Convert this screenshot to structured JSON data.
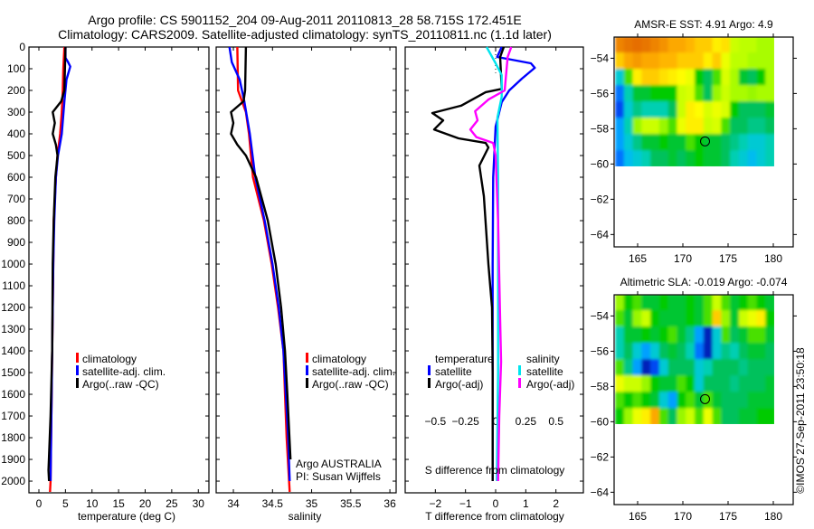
{
  "title": {
    "line1": "Argo profile: CS 5901152_204 09-Aug-2011 20110813_28 58.715S 172.451E",
    "line2": "Climatology: CARS2009. Satellite-adjusted climatology: synTS_20110811.nc (1.1d later)"
  },
  "credit": {
    "line1": "Argo AUSTRALIA",
    "line2": "PI: Susan Wijffels"
  },
  "copyright": "©IMOS 27-Sep-2011 23:50:18",
  "colors": {
    "climatology": "#ff0000",
    "satellite": "#0000ff",
    "argo": "#000000",
    "sal_satellite": "#00e5ee",
    "sal_argo": "#ff00ff"
  },
  "chart_data": [
    {
      "type": "line",
      "name": "temperature-profile",
      "xlabel": "temperature (deg C)",
      "ylabel": "",
      "xlim": [
        -1.87,
        32.0
      ],
      "ylim": [
        2054,
        0
      ],
      "xticks": [
        0,
        5,
        10,
        15,
        20,
        25,
        30
      ],
      "yticks": [
        0,
        100,
        200,
        300,
        400,
        500,
        600,
        700,
        800,
        900,
        1000,
        1100,
        1200,
        1300,
        1400,
        1500,
        1600,
        1700,
        1800,
        1900,
        2000
      ],
      "legend": [
        "climatology",
        "satellite-adj. clim.",
        "Argo(..raw -QC)"
      ],
      "series": [
        {
          "name": "climatology",
          "color": "#ff0000",
          "depth": [
            0,
            100,
            200,
            300,
            400,
            500,
            600,
            700,
            800,
            1000,
            1200,
            1400,
            1600,
            1800,
            2000,
            2050
          ],
          "values": [
            4.8,
            4.6,
            4.5,
            4.3,
            4.0,
            3.5,
            3.2,
            3.0,
            2.8,
            2.7,
            2.6,
            2.5,
            2.4,
            2.3,
            2.2,
            2.1
          ]
        },
        {
          "name": "satellite-adj. clim.",
          "color": "#0000ff",
          "depth": [
            0,
            50,
            70,
            90,
            150,
            250,
            400,
            500,
            600,
            800,
            1000,
            1400,
            2000
          ],
          "values": [
            5.0,
            5.0,
            5.5,
            5.9,
            5.2,
            4.8,
            4.3,
            3.6,
            3.2,
            2.9,
            2.7,
            2.5,
            2.2
          ]
        },
        {
          "name": "Argo(..raw -QC)",
          "color": "#000000",
          "depth": [
            0,
            200,
            250,
            300,
            350,
            400,
            450,
            500,
            600,
            800,
            1000,
            1400,
            1700,
            1950,
            2000
          ],
          "values": [
            5.0,
            4.8,
            4.2,
            2.6,
            3.0,
            2.6,
            3.2,
            3.5,
            3.1,
            2.8,
            2.6,
            2.5,
            2.2,
            1.8,
            1.9
          ]
        }
      ]
    },
    {
      "type": "line",
      "name": "salinity-profile",
      "xlabel": "salinity",
      "xlim": [
        33.78,
        36.08
      ],
      "ylim": [
        2054,
        0
      ],
      "xticks": [
        34,
        34.5,
        35,
        35.5,
        36
      ],
      "legend": [
        "climatology",
        "satellite-adj. clim.",
        "Argo(..raw -QC)"
      ],
      "series": [
        {
          "name": "climatology",
          "color": "#ff0000",
          "depth": [
            0,
            200,
            300,
            400,
            600,
            800,
            1000,
            1200,
            1400,
            1600,
            1800,
            2050
          ],
          "values": [
            34.05,
            34.06,
            34.16,
            34.2,
            34.25,
            34.39,
            34.49,
            34.57,
            34.64,
            34.66,
            34.68,
            34.72
          ]
        },
        {
          "name": "satellite-adj. clim.",
          "color": "#0000ff",
          "depth": [
            0,
            70,
            150,
            250,
            400,
            600,
            800,
            1000,
            1200,
            1400,
            1600,
            1800,
            2000
          ],
          "values": [
            33.95,
            33.98,
            34.08,
            34.14,
            34.21,
            34.28,
            34.4,
            34.5,
            34.58,
            34.64,
            34.67,
            34.7,
            34.72
          ]
        },
        {
          "name": "Argo(..raw -QC)",
          "color": "#000000",
          "depth": [
            0,
            200,
            250,
            300,
            350,
            400,
            450,
            500,
            600,
            800,
            1000,
            1200,
            1400,
            1600,
            1900
          ],
          "values": [
            34.16,
            34.15,
            34.13,
            33.97,
            34.0,
            33.97,
            34.05,
            34.16,
            34.29,
            34.44,
            34.54,
            34.61,
            34.66,
            34.69,
            34.73
          ]
        }
      ]
    },
    {
      "type": "line",
      "name": "difference-profile",
      "xlabel": "T difference from climatology",
      "xlabel2": "S difference from climatology",
      "xlim": [
        -3.0,
        2.91
      ],
      "x2_scale": 0.25,
      "ylim": [
        2054,
        0
      ],
      "xticks": [
        -2,
        -1,
        0,
        1,
        2
      ],
      "x2ticks": [
        -0.5,
        -0.25,
        0,
        0.25,
        0.5
      ],
      "legend": {
        "temperature": "temperature",
        "salinity": "salinity",
        "satellite": "satellite",
        "argo": "Argo(-adj)"
      },
      "series": [
        {
          "name": "T satellite",
          "axis": "T",
          "color": "#0000ff",
          "depth": [
            0,
            46,
            75,
            96,
            146,
            200,
            254,
            367,
            600,
            1000,
            2000
          ],
          "values": [
            0.2,
            0.05,
            1.17,
            1.3,
            0.87,
            0.45,
            0.2,
            0.0,
            -0.08,
            -0.1,
            -0.1
          ]
        },
        {
          "name": "T Argo(-adj)",
          "axis": "T",
          "color": "#000000",
          "depth": [
            0,
            46,
            193,
            208,
            270,
            304,
            338,
            380,
            421,
            442,
            463,
            546,
            688,
            1000,
            1200,
            1500,
            2000
          ],
          "values": [
            0.27,
            0.15,
            0.2,
            -0.33,
            -1.14,
            -2.1,
            -1.74,
            -2.04,
            -1.23,
            -0.33,
            -0.24,
            -0.54,
            -0.39,
            -0.24,
            -0.12,
            -0.1,
            -0.1
          ]
        },
        {
          "name": "S satellite",
          "axis": "S",
          "color": "#00e5ee",
          "depth": [
            0,
            75,
            129,
            229,
            325,
            600,
            1000,
            1500,
            2000
          ],
          "values": [
            -0.075,
            0.0,
            0.05,
            0.05,
            0.015,
            0.02,
            0.02,
            0.02,
            0.01
          ]
        },
        {
          "name": "S Argo(-adj)",
          "axis": "S",
          "color": "#ff00ff",
          "depth": [
            0,
            46,
            200,
            242,
            296,
            338,
            380,
            415,
            442,
            500,
            800,
            1200,
            1450,
            1700,
            2000
          ],
          "values": [
            0.13,
            0.1,
            0.075,
            -0.06,
            -0.17,
            -0.15,
            -0.21,
            -0.16,
            -0.02,
            0.0,
            0.02,
            0.035,
            0.045,
            0.03,
            0.02
          ]
        }
      ]
    },
    {
      "type": "heatmap",
      "name": "sst-map",
      "title": "AMSR-E SST: 4.91 Argo: 4.9",
      "xlim": [
        162.4,
        182.2
      ],
      "ylim": [
        -64.7,
        -52.8
      ],
      "xticks": [
        165,
        170,
        175,
        180
      ],
      "yticks": [
        -54,
        -56,
        -58,
        -60,
        -62,
        -64
      ],
      "extent": [
        162.6,
        180.2,
        -60.2,
        -52.8
      ],
      "float_position": {
        "lon": 172.451,
        "lat": -58.715
      },
      "grid_values": [
        [
          0.95,
          0.97,
          0.98,
          0.97,
          0.95,
          0.93,
          0.9,
          0.9,
          0.88,
          0.85,
          0.85,
          0.8,
          0.82,
          0.7,
          0.68,
          0.68,
          0.66,
          0.66
        ],
        [
          0.85,
          0.9,
          0.92,
          0.9,
          0.9,
          0.88,
          0.88,
          0.85,
          0.85,
          0.85,
          0.8,
          0.85,
          0.75,
          0.68,
          0.68,
          0.66,
          0.66,
          0.66
        ],
        [
          0.3,
          0.6,
          0.8,
          0.85,
          0.85,
          0.82,
          0.8,
          0.78,
          0.75,
          0.55,
          0.45,
          0.6,
          0.72,
          0.66,
          0.5,
          0.45,
          0.55,
          0.66
        ],
        [
          0.15,
          0.35,
          0.5,
          0.5,
          0.55,
          0.55,
          0.55,
          0.7,
          0.72,
          0.6,
          0.45,
          0.65,
          0.7,
          0.66,
          0.66,
          0.65,
          0.66,
          0.66
        ],
        [
          0.1,
          0.3,
          0.4,
          0.35,
          0.35,
          0.35,
          0.45,
          0.7,
          0.8,
          0.78,
          0.72,
          0.75,
          0.72,
          0.55,
          0.45,
          0.45,
          0.45,
          0.5
        ],
        [
          0.2,
          0.35,
          0.65,
          0.7,
          0.7,
          0.65,
          0.6,
          0.75,
          0.8,
          0.8,
          0.7,
          0.72,
          0.6,
          0.45,
          0.45,
          0.4,
          0.4,
          0.45
        ],
        [
          0.2,
          0.3,
          0.4,
          0.5,
          0.5,
          0.55,
          0.5,
          0.5,
          0.6,
          0.55,
          0.5,
          0.5,
          0.45,
          0.4,
          0.35,
          0.3,
          0.3,
          0.35
        ],
        [
          0.15,
          0.25,
          0.3,
          0.35,
          0.45,
          0.45,
          0.5,
          0.45,
          0.5,
          0.55,
          0.5,
          0.5,
          0.45,
          0.35,
          0.3,
          0.25,
          0.3,
          0.35
        ]
      ]
    },
    {
      "type": "heatmap",
      "name": "sla-map",
      "title": "Altimetric SLA: -0.019 Argo: -0.074",
      "xlim": [
        162.4,
        182.2
      ],
      "ylim": [
        -64.7,
        -52.8
      ],
      "xticks": [
        165,
        170,
        175,
        180
      ],
      "yticks": [
        -54,
        -56,
        -58,
        -60,
        -62,
        -64
      ],
      "extent": [
        162.6,
        180.2,
        -60.2,
        -52.8
      ],
      "float_position": {
        "lon": 172.451,
        "lat": -58.715
      },
      "grid_values": [
        [
          0.65,
          0.55,
          0.6,
          0.5,
          0.5,
          0.55,
          0.5,
          0.5,
          0.55,
          0.5,
          0.6,
          0.7,
          0.6,
          0.5,
          0.55,
          0.6,
          0.55,
          0.5
        ],
        [
          0.6,
          0.5,
          0.65,
          0.7,
          0.55,
          0.5,
          0.5,
          0.5,
          0.55,
          0.5,
          0.6,
          0.85,
          0.65,
          0.5,
          0.7,
          0.75,
          0.8,
          0.55
        ],
        [
          0.35,
          0.5,
          0.5,
          0.55,
          0.5,
          0.55,
          0.6,
          0.5,
          0.4,
          0.2,
          0.05,
          0.3,
          0.6,
          0.45,
          0.5,
          0.6,
          0.6,
          0.5
        ],
        [
          0.35,
          0.45,
          0.3,
          0.2,
          0.3,
          0.45,
          0.5,
          0.45,
          0.35,
          0.15,
          0.05,
          0.3,
          0.4,
          0.35,
          0.45,
          0.5,
          0.5,
          0.45
        ],
        [
          0.6,
          0.4,
          0.2,
          0.05,
          0.1,
          0.3,
          0.45,
          0.45,
          0.45,
          0.3,
          0.35,
          0.45,
          0.45,
          0.45,
          0.4,
          0.45,
          0.45,
          0.45
        ],
        [
          0.75,
          0.7,
          0.7,
          0.65,
          0.55,
          0.5,
          0.5,
          0.6,
          0.55,
          0.3,
          0.45,
          0.45,
          0.45,
          0.4,
          0.45,
          0.45,
          0.45,
          0.5
        ],
        [
          0.6,
          0.55,
          0.6,
          0.55,
          0.5,
          0.3,
          0.2,
          0.55,
          0.6,
          0.5,
          0.6,
          0.5,
          0.45,
          0.45,
          0.45,
          0.5,
          0.5,
          0.5
        ],
        [
          0.55,
          0.65,
          0.75,
          0.8,
          0.9,
          0.6,
          0.45,
          0.65,
          0.7,
          0.6,
          0.75,
          0.6,
          0.45,
          0.45,
          0.5,
          0.5,
          0.55,
          0.55
        ]
      ]
    }
  ],
  "colormap": [
    "#000080",
    "#0050ff",
    "#00b4ff",
    "#00d2c0",
    "#00c060",
    "#00cc00",
    "#b4ff00",
    "#ffff00",
    "#ffb000",
    "#e06000"
  ]
}
